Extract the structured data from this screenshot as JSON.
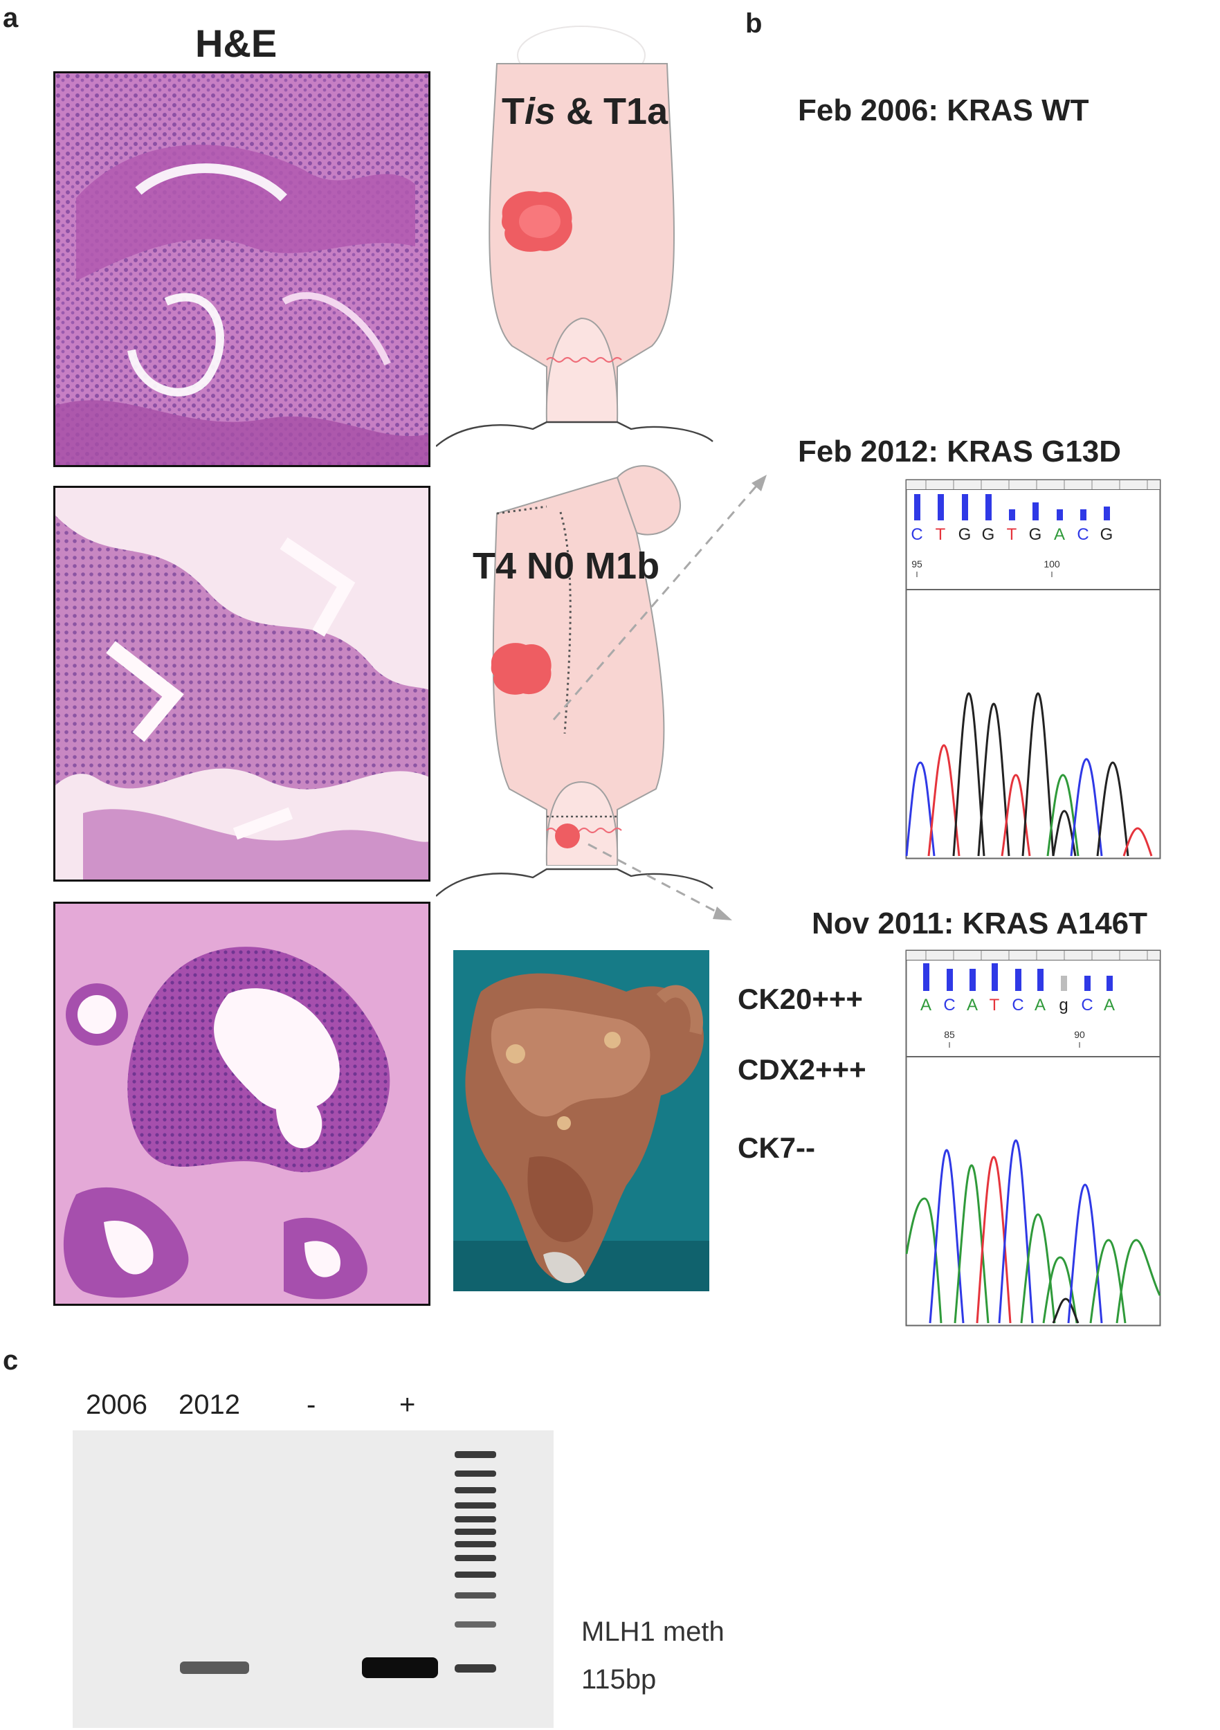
{
  "panel_a": {
    "letter": "a",
    "he_title": "H&E",
    "stage_top": {
      "prefix": "T",
      "italic": "is",
      "suffix": " & T1a"
    },
    "stage_middle": "T4 N0 M1b"
  },
  "panel_b": {
    "letter": "b",
    "mutation_2006": "Feb 2006:  KRAS WT",
    "mutation_2012": "Feb 2012:  KRAS G13D",
    "mutation_2011": "Nov 2011:  KRAS A146T",
    "markers": [
      "CK20+++",
      "CDX2+++",
      "CK7--"
    ],
    "trace_top": {
      "bases": [
        "C",
        "T",
        "G",
        "G",
        "T",
        "G",
        "A",
        "C",
        "G"
      ],
      "ticks": [
        "95",
        "100"
      ]
    },
    "trace_bottom": {
      "bases": [
        "A",
        "C",
        "A",
        "T",
        "C",
        "A",
        "g",
        "C",
        "A"
      ],
      "ticks": [
        "85",
        "90"
      ]
    }
  },
  "panel_c": {
    "letter": "c",
    "lanes": [
      "2006",
      "2012",
      "-",
      "+"
    ],
    "band_label_1": "MLH1 meth",
    "band_label_2": "115bp"
  },
  "colors": {
    "organ_fill": "#f8d5d2",
    "tumor": "#ee4f55",
    "trace_blue": "#2f39e6",
    "trace_red": "#e5343c",
    "trace_green": "#2f9a3a",
    "trace_black": "#222222",
    "gel_bg": "#ececec"
  }
}
